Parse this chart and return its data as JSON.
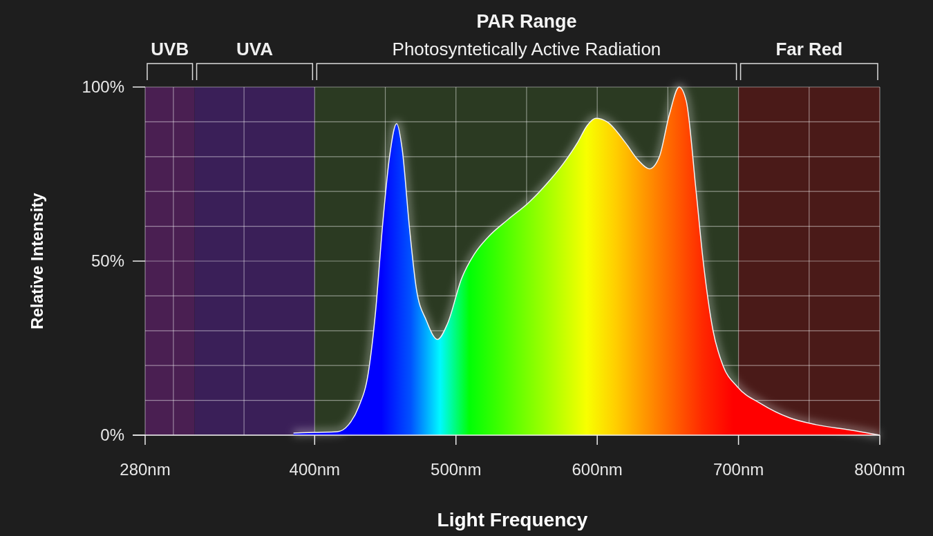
{
  "chart_data": {
    "type": "area",
    "title": "PAR Range",
    "xlabel": "Light Frequency",
    "ylabel": "Relative Intensity",
    "x": [
      385,
      400,
      416,
      424,
      431,
      438,
      443,
      448,
      453,
      458,
      462,
      467,
      472,
      479,
      487,
      494,
      504,
      513,
      523,
      537,
      552,
      566,
      576,
      586,
      593,
      599,
      607,
      620,
      629,
      637,
      644,
      651,
      658,
      663,
      670,
      675,
      682,
      689,
      699,
      716,
      736,
      755,
      779,
      800
    ],
    "series": [
      {
        "color": "#f4f4f4",
        "values": [
          0.6,
          0.8,
          1,
          3,
          8,
          18,
          35,
          60,
          80,
          89.5,
          82,
          60,
          42,
          33,
          27.5,
          32,
          45,
          52,
          57,
          62,
          67,
          73,
          78,
          84,
          89,
          91,
          90,
          84,
          79,
          76.5,
          80,
          92,
          100,
          96,
          70,
          50,
          30,
          20,
          14,
          9,
          5,
          3,
          1.5,
          0
        ]
      }
    ],
    "xlim": [
      280,
      800
    ],
    "xticks": [
      {
        "value": 280,
        "label": "280nm"
      },
      {
        "value": 300,
        "label": null
      },
      {
        "value": 350,
        "label": null
      },
      {
        "value": 400,
        "label": "400nm"
      },
      {
        "value": 450,
        "label": null
      },
      {
        "value": 500,
        "label": "500nm"
      },
      {
        "value": 550,
        "label": null
      },
      {
        "value": 600,
        "label": "600nm"
      },
      {
        "value": 650,
        "label": null
      },
      {
        "value": 700,
        "label": "700nm"
      },
      {
        "value": 750,
        "label": null
      },
      {
        "value": 800,
        "label": "800nm"
      }
    ],
    "ylim": [
      0,
      100
    ],
    "yticks": [
      {
        "value": 0,
        "label": "0%"
      },
      {
        "value": 10,
        "label": null
      },
      {
        "value": 20,
        "label": null
      },
      {
        "value": 30,
        "label": null
      },
      {
        "value": 40,
        "label": null
      },
      {
        "value": 50,
        "label": "50%"
      },
      {
        "value": 60,
        "label": null
      },
      {
        "value": 70,
        "label": null
      },
      {
        "value": 80,
        "label": null
      },
      {
        "value": 90,
        "label": null
      },
      {
        "value": 100,
        "label": "100%"
      }
    ],
    "grid": true,
    "bands": [
      {
        "axis": "x",
        "from": 280,
        "to": 315,
        "label": "UVB",
        "color": "#4a1f52"
      },
      {
        "axis": "x",
        "from": 315,
        "to": 400,
        "label": "UVA",
        "color": "#3a1f58"
      },
      {
        "axis": "x",
        "from": 400,
        "to": 700,
        "label": "Photosyntetically Active Radiation",
        "color": "#2b3a22"
      },
      {
        "axis": "x",
        "from": 700,
        "to": 800,
        "label": "Far Red",
        "color": "#4a1a18"
      }
    ]
  }
}
